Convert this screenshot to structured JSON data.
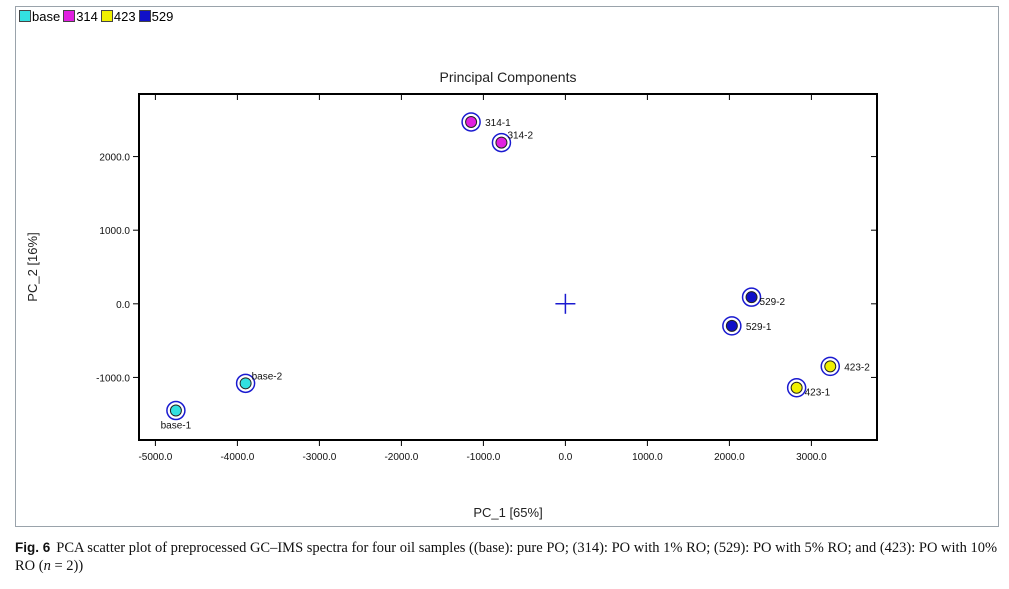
{
  "chart_data": {
    "type": "scatter",
    "title": "Principal Components",
    "xlabel": "PC_1 [65%]",
    "ylabel": "PC_2 [16%]",
    "xlim": [
      -5200,
      3800
    ],
    "ylim": [
      -1850,
      2850
    ],
    "x_ticks": [
      -5000,
      -4000,
      -3000,
      -2000,
      -1000,
      0,
      1000,
      2000,
      3000
    ],
    "x_tick_labels": [
      "-5000.0",
      "-4000.0",
      "-3000.0",
      "-2000.0",
      "-1000.0",
      "0.0",
      "1000.0",
      "2000.0",
      "3000.0"
    ],
    "y_ticks": [
      -1000,
      0,
      1000,
      2000
    ],
    "y_tick_labels": [
      "-1000.0",
      "0.0",
      "1000.0",
      "2000.0"
    ],
    "legend": [
      {
        "name": "base",
        "color": "#33e0e0"
      },
      {
        "name": "314",
        "color": "#e020e0"
      },
      {
        "name": "423",
        "color": "#f0f000"
      },
      {
        "name": "529",
        "color": "#1010c8"
      }
    ],
    "series": [
      {
        "name": "base",
        "color": "#33e0e0",
        "points": [
          {
            "label": "base-1",
            "x": -4750,
            "y": -1450,
            "label_pos": "below"
          },
          {
            "label": "base-2",
            "x": -3900,
            "y": -1080,
            "label_pos": "above-right"
          }
        ]
      },
      {
        "name": "314",
        "color": "#e020e0",
        "points": [
          {
            "label": "314-1",
            "x": -1150,
            "y": 2470,
            "label_pos": "right"
          },
          {
            "label": "314-2",
            "x": -780,
            "y": 2190,
            "label_pos": "above-right"
          }
        ]
      },
      {
        "name": "529",
        "color": "#1010c8",
        "points": [
          {
            "label": "529-1",
            "x": 2030,
            "y": -300,
            "label_pos": "right"
          },
          {
            "label": "529-2",
            "x": 2270,
            "y": 90,
            "label_pos": "below-right"
          }
        ]
      },
      {
        "name": "423",
        "color": "#f0f000",
        "points": [
          {
            "label": "423-1",
            "x": 2820,
            "y": -1140,
            "label_pos": "below-right"
          },
          {
            "label": "423-2",
            "x": 3230,
            "y": -850,
            "label_pos": "right"
          }
        ]
      }
    ],
    "centroid_marker": {
      "x": 0,
      "y": 0,
      "color": "#1a1ad0"
    }
  },
  "caption": {
    "label": "Fig. 6",
    "text_1": "PCA scatter plot of preprocessed GC–IMS spectra for four oil samples ((base): pure PO; (314): PO with 1% RO; (529): PO with 5% RO; and (423): PO with 10% RO (",
    "n": "n",
    "text_2": " = 2))"
  }
}
